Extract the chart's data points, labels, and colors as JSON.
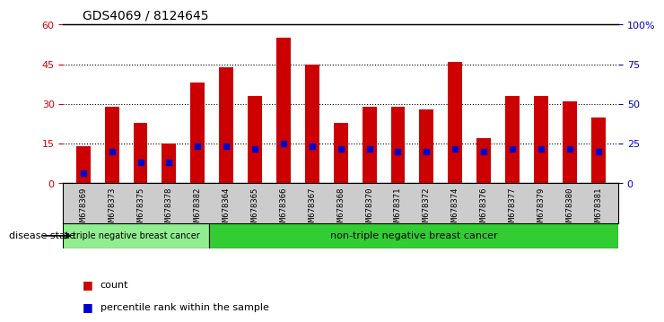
{
  "title": "GDS4069 / 8124645",
  "samples": [
    "GSM678369",
    "GSM678373",
    "GSM678375",
    "GSM678378",
    "GSM678382",
    "GSM678364",
    "GSM678365",
    "GSM678366",
    "GSM678367",
    "GSM678368",
    "GSM678370",
    "GSM678371",
    "GSM678372",
    "GSM678374",
    "GSM678376",
    "GSM678377",
    "GSM678379",
    "GSM678380",
    "GSM678381"
  ],
  "counts": [
    14,
    29,
    23,
    15,
    38,
    44,
    33,
    55,
    45,
    23,
    29,
    29,
    28,
    46,
    17,
    33,
    33,
    31,
    25
  ],
  "percentiles": [
    4,
    12,
    8,
    8,
    14,
    14,
    13,
    15,
    14,
    13,
    13,
    12,
    12,
    13,
    12,
    13,
    13,
    13,
    12
  ],
  "bar_color": "#cc0000",
  "pct_color": "#0000cc",
  "ylim_left": [
    0,
    60
  ],
  "ylim_right": [
    0,
    100
  ],
  "yticks_left": [
    0,
    15,
    30,
    45,
    60
  ],
  "yticks_right": [
    0,
    25,
    50,
    75,
    100
  ],
  "ytick_labels_right": [
    "0",
    "25",
    "50",
    "75",
    "100%"
  ],
  "plot_bg": "#ffffff",
  "triple_neg_count": 5,
  "group1_label": "triple negative breast cancer",
  "group2_label": "non-triple negative breast cancer",
  "group1_color": "#90ee90",
  "group2_color": "#32cd32",
  "disease_state_label": "disease state",
  "legend_count_label": "count",
  "legend_pct_label": "percentile rank within the sample",
  "tick_label_color_left": "#cc0000",
  "tick_label_color_right": "#0000cc",
  "xlabel_bg": "#cccccc"
}
